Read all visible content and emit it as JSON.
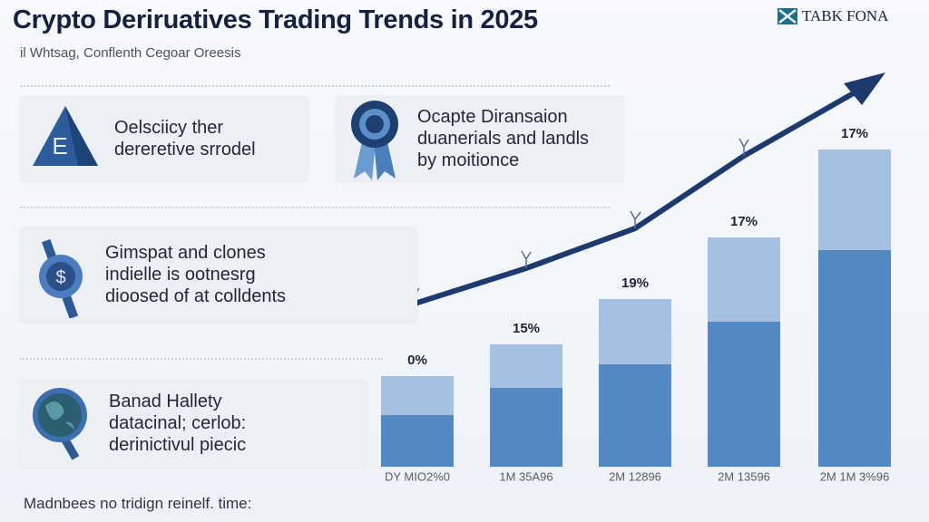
{
  "header": {
    "title": "Crypto Deriruatives Trading Trends in 2025",
    "subtitle": "il Whtsag, Conflenth Cegoar Oreesis",
    "logo": "TABK FONA"
  },
  "cards": [
    {
      "lines": [
        "Oelsciicy ther",
        "dereretive srrodel"
      ]
    },
    {
      "lines": [
        "Ocapte Diransaion",
        "duanerials and landls",
        "by moitionce"
      ]
    },
    {
      "lines": [
        "Gimspat and clones",
        "indielle is ootnesrg",
        "dioosed of at colldents"
      ]
    },
    {
      "lines": [
        "Banad Hallety",
        "datacinal; cerlob:",
        "derinictivul piecic"
      ]
    }
  ],
  "chart_data": {
    "type": "stacked-bar",
    "categories": [
      "DY MIO2%0",
      "1M 35A96",
      "2M 12896",
      "2M 13596",
      "2M 1M 3%96"
    ],
    "series": [
      {
        "color": "#5389c2",
        "values": [
          57,
          87,
          113,
          160,
          239
        ]
      },
      {
        "color": "#a5c0e2",
        "values": [
          43,
          48,
          72,
          93,
          111
        ]
      }
    ],
    "annotations": [
      "0%",
      "15%",
      "19%",
      "17%",
      "17%"
    ],
    "ylim": [
      0,
      360
    ]
  },
  "footer": "Madnbees no tridign reinelf. time:"
}
